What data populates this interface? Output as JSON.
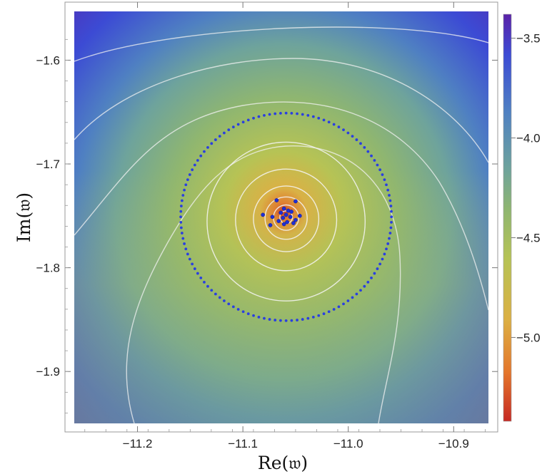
{
  "chart_data": {
    "type": "heatmap",
    "title": "",
    "xlabel": "Re(𝔴)",
    "ylabel": "Im(𝔴)",
    "xlim": [
      -11.26,
      -10.867
    ],
    "ylim": [
      -1.95,
      -1.553
    ],
    "x_ticks": [
      -11.2,
      -11.1,
      -11.0,
      -10.9
    ],
    "x_tick_labels": [
      "−11.2",
      "−11.1",
      "−11.0",
      "−10.9"
    ],
    "y_ticks": [
      -1.6,
      -1.7,
      -1.8,
      -1.9
    ],
    "y_tick_labels": [
      "−1.6",
      "−1.7",
      "−1.8",
      "−1.9"
    ],
    "colorbar": {
      "range": [
        -5.42,
        -3.38
      ],
      "ticks": [
        -3.5,
        -4.0,
        -4.5,
        -5.0
      ],
      "tick_labels": [
        "−3.5",
        "−4.0",
        "−4.5",
        "−5.0"
      ],
      "colors_low_to_high": [
        "#c62a24",
        "#e4762c",
        "#dcb044",
        "#b6c355",
        "#8fb670",
        "#6ea39c",
        "#4f80c2",
        "#3c4bd4",
        "#5a22a8"
      ]
    },
    "center": {
      "x": -11.059,
      "y": -1.751
    },
    "dotted_circle": {
      "center_x": -11.059,
      "center_y": -1.751,
      "radius": 0.1,
      "color": "#2a3fe0"
    },
    "scatter_points": [
      {
        "x": -11.068,
        "y": -1.735
      },
      {
        "x": -11.05,
        "y": -1.736
      },
      {
        "x": -11.061,
        "y": -1.743
      },
      {
        "x": -11.057,
        "y": -1.745
      },
      {
        "x": -11.064,
        "y": -1.747
      },
      {
        "x": -11.054,
        "y": -1.746
      },
      {
        "x": -11.081,
        "y": -1.749
      },
      {
        "x": -11.072,
        "y": -1.751
      },
      {
        "x": -11.059,
        "y": -1.749
      },
      {
        "x": -11.062,
        "y": -1.752
      },
      {
        "x": -11.055,
        "y": -1.751
      },
      {
        "x": -11.046,
        "y": -1.75
      },
      {
        "x": -11.066,
        "y": -1.755
      },
      {
        "x": -11.058,
        "y": -1.756
      },
      {
        "x": -11.052,
        "y": -1.757
      },
      {
        "x": -11.074,
        "y": -1.759
      },
      {
        "x": -11.061,
        "y": -1.758
      },
      {
        "x": -11.05,
        "y": -1.754
      }
    ],
    "contour_circle_radii": [
      0.006,
      0.012,
      0.02,
      0.031,
      0.048,
      0.075
    ],
    "grid": false,
    "legend": "colorbar-right"
  }
}
